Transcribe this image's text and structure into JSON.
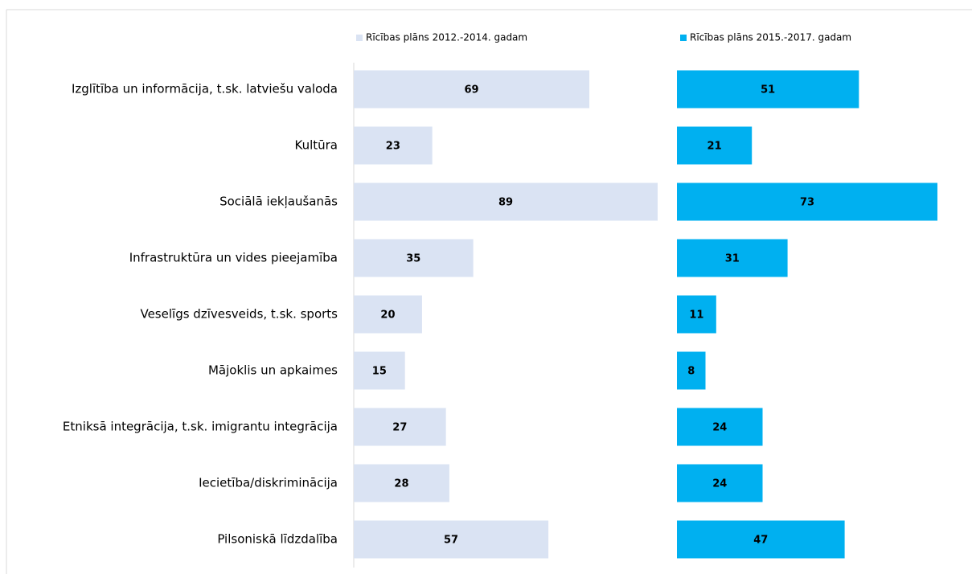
{
  "chart_data": {
    "type": "bar",
    "categories": [
      "Izglītība un informācija, t.sk. latviešu valoda",
      "Kultūra",
      "Sociālā iekļaušanās",
      "Infrastruktūra un vides pieejamība",
      "Veselīgs dzīvesveids, t.sk. sports",
      "Mājoklis un apkaimes",
      "Etniksā integrācija, t.sk. imigrantu integrācija",
      "Iecietība/diskriminācija",
      "Pilsoniskā līdzdalība"
    ],
    "series": [
      {
        "name": "Rīcības plāns 2012.-2014. gadam",
        "color": "#dae3f3",
        "values": [
          69,
          23,
          89,
          35,
          20,
          15,
          27,
          28,
          57
        ]
      },
      {
        "name": "Rīcības plāns 2015.-2017. gadam",
        "color": "#00b0f0",
        "values": [
          51,
          21,
          73,
          31,
          11,
          8,
          24,
          24,
          47
        ]
      }
    ],
    "legend": "top"
  }
}
